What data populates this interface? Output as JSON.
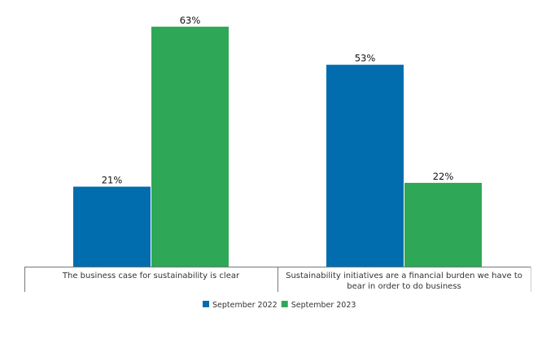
{
  "chart_data": {
    "type": "bar",
    "title": "",
    "xlabel": "",
    "ylabel": "",
    "ylim": [
      0,
      70
    ],
    "grid": false,
    "legend_position": "bottom",
    "categories": [
      [
        "The business case for sustainability is clear"
      ],
      [
        "Sustainability initiatives are a financial burden we have to",
        "bear in order to do business"
      ]
    ],
    "series": [
      {
        "name": "September 2022",
        "color": "#016DAE",
        "values": [
          21,
          53
        ],
        "labels": [
          "21%",
          "53%"
        ]
      },
      {
        "name": "September 2023",
        "color": "#2EA857",
        "values": [
          63,
          22
        ],
        "labels": [
          "63%",
          "22%"
        ]
      }
    ]
  }
}
